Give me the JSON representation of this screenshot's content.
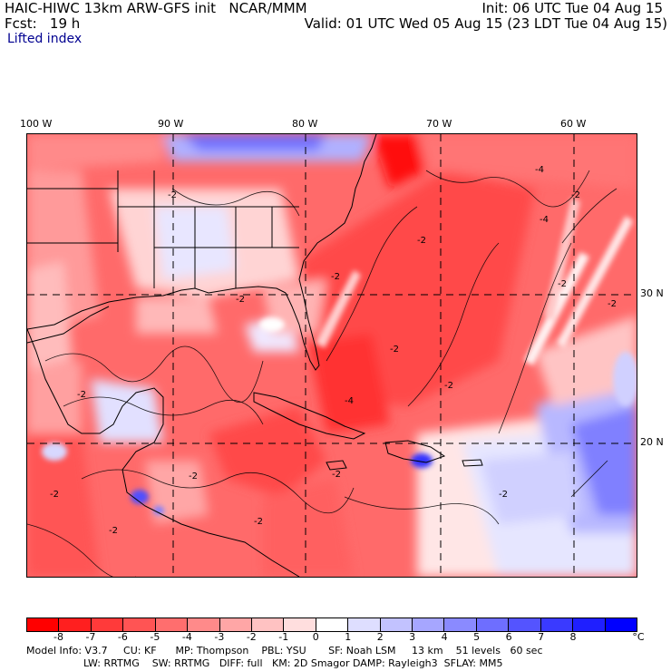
{
  "header": {
    "title_left": "HAIC-HIWC 13km ARW-GFS init   NCAR/MMM",
    "fcst_left": "Fcst:   19 h",
    "field": "Lifted index",
    "init_right": "Init: 06 UTC Tue 04 Aug 15",
    "valid_right": "Valid: 01 UTC Wed 05 Aug 15 (23 LDT Tue 04 Aug 15)"
  },
  "map": {
    "lon_labels": [
      "100 W",
      "90 W",
      "80 W",
      "70 W",
      "60 W"
    ],
    "lat_labels": [
      "30 N",
      "20 N"
    ],
    "contour_labels": [
      "-2",
      "-2",
      "-2",
      "-2",
      "-4",
      "-4",
      "-4",
      "-2",
      "-2",
      "-2",
      "-2",
      "-2",
      "-2",
      "-2",
      "-2",
      "-2",
      "-2",
      "-2",
      "-2"
    ]
  },
  "colorbar": {
    "labels": [
      "-8",
      "-7",
      "-6",
      "-5",
      "-4",
      "-3",
      "-2",
      "-1",
      "0",
      "1",
      "2",
      "3",
      "4",
      "5",
      "6",
      "7",
      "8"
    ],
    "unit": "°C",
    "colors": [
      "#ff0000",
      "#ff1f1f",
      "#ff3a3a",
      "#ff5454",
      "#ff6e6e",
      "#ff8a8a",
      "#ffa6a6",
      "#ffc2c2",
      "#ffdede",
      "#ffffff",
      "#dedeff",
      "#c2c2ff",
      "#a6a6ff",
      "#8a8aff",
      "#6e6eff",
      "#5454ff",
      "#3a3aff",
      "#1f1fff",
      "#0000ff"
    ]
  },
  "footer": {
    "line1": "Model Info: V3.7     CU: KF      MP: Thompson    PBL: YSU       SF: Noah LSM     13 km    51 levels   60 sec",
    "line2": "                  LW: RRTMG    SW: RRTMG   DIFF: full   KM: 2D Smagor DAMP: Rayleigh3  SFLAY: MM5"
  }
}
